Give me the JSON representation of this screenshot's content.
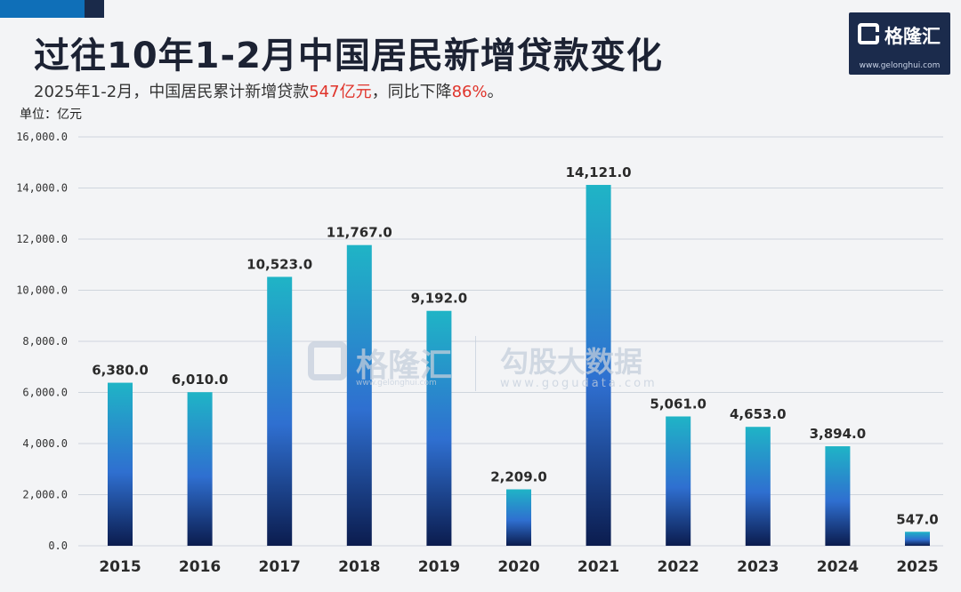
{
  "title": "过往10年1-2月中国居民新增贷款变化",
  "subtitle": {
    "prefix": "2025年1-2月，中国居民累计新增贷款",
    "highlight1": "547亿元",
    "middle": "，同比下降",
    "highlight2": "86%",
    "suffix": "。"
  },
  "unit_label": "单位：亿元",
  "logo": {
    "name": "格隆汇",
    "url": "www.gelonghui.com"
  },
  "watermark": {
    "brand1": "格隆汇",
    "brand1_url": "www.gelonghui.com",
    "brand2": "勾股大数据",
    "brand2_url": "www.gogudata.com"
  },
  "colors": {
    "bar_top": "#1fb4c6",
    "bar_mid": "#2f6fd0",
    "bar_bottom": "#0b1c4e",
    "highlight": "#e0342b",
    "grid": "#cfd5dd"
  },
  "chart_data": {
    "type": "bar",
    "categories": [
      "2015",
      "2016",
      "2017",
      "2018",
      "2019",
      "2020",
      "2021",
      "2022",
      "2023",
      "2024",
      "2025"
    ],
    "values": [
      6380.0,
      6010.0,
      10523.0,
      11767.0,
      9192.0,
      2209.0,
      14121.0,
      5061.0,
      4653.0,
      3894.0,
      547.0
    ],
    "value_labels": [
      "6,380.0",
      "6,010.0",
      "10,523.0",
      "11,767.0",
      "9,192.0",
      "2,209.0",
      "14,121.0",
      "5,061.0",
      "4,653.0",
      "3,894.0",
      "547.0"
    ],
    "yticks": [
      0,
      2000,
      4000,
      6000,
      8000,
      10000,
      12000,
      14000,
      16000
    ],
    "ytick_labels": [
      "0.0",
      "2,000.0",
      "4,000.0",
      "6,000.0",
      "8,000.0",
      "10,000.0",
      "12,000.0",
      "14,000.0",
      "16,000.0"
    ],
    "ylim": [
      0,
      16000
    ],
    "grid": true,
    "legend": "none"
  }
}
